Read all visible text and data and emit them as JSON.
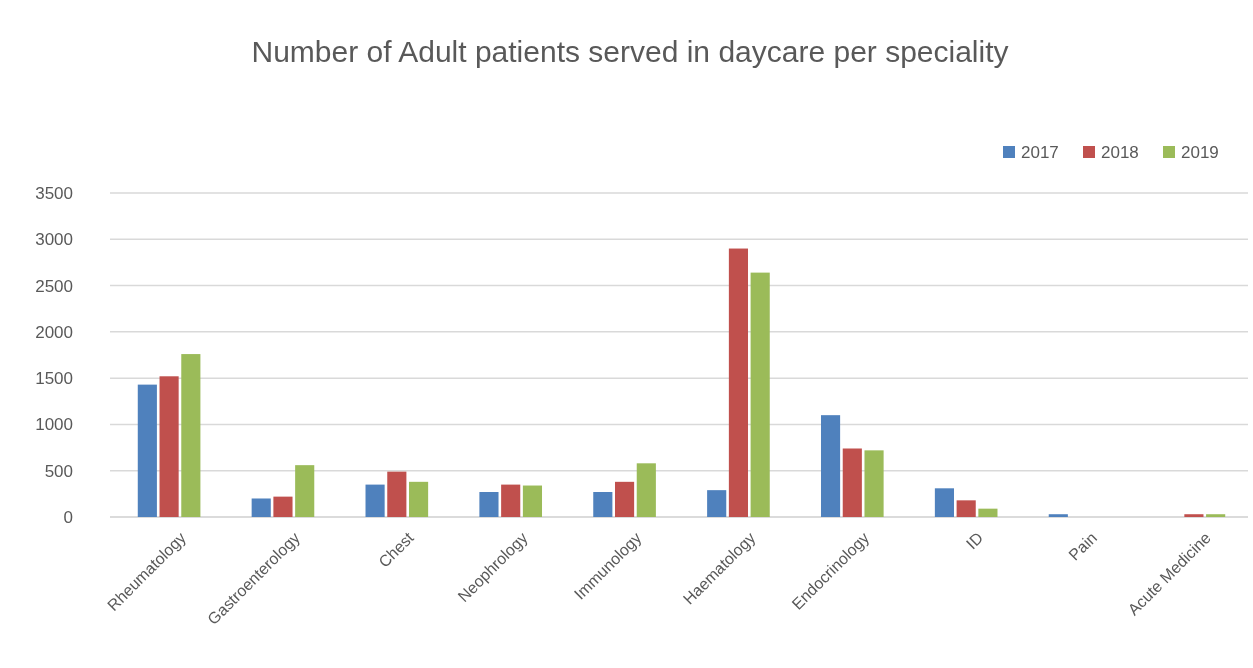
{
  "chart_data": {
    "type": "bar",
    "title": "Number of Adult patients served in daycare per speciality",
    "categories": [
      "Rheumatology",
      "Gastroenterology",
      "Chest",
      "Neophrology",
      "Immunology",
      "Haematology",
      "Endocrinology",
      "ID",
      "Pain",
      "Acute Medicine"
    ],
    "series": [
      {
        "name": "2017",
        "color": "#4f81bd",
        "values": [
          1430,
          200,
          350,
          270,
          270,
          290,
          1100,
          310,
          30,
          0
        ]
      },
      {
        "name": "2018",
        "color": "#c0504d",
        "values": [
          1520,
          220,
          490,
          350,
          380,
          2900,
          740,
          180,
          0,
          30
        ]
      },
      {
        "name": "2019",
        "color": "#9bbb59",
        "values": [
          1760,
          560,
          380,
          340,
          580,
          2640,
          720,
          90,
          0,
          30
        ]
      }
    ],
    "ylim": [
      0,
      3500
    ],
    "yticks": [
      0,
      500,
      1000,
      1500,
      2000,
      2500,
      3000,
      3500
    ],
    "grid": "y",
    "legend": "top right"
  }
}
